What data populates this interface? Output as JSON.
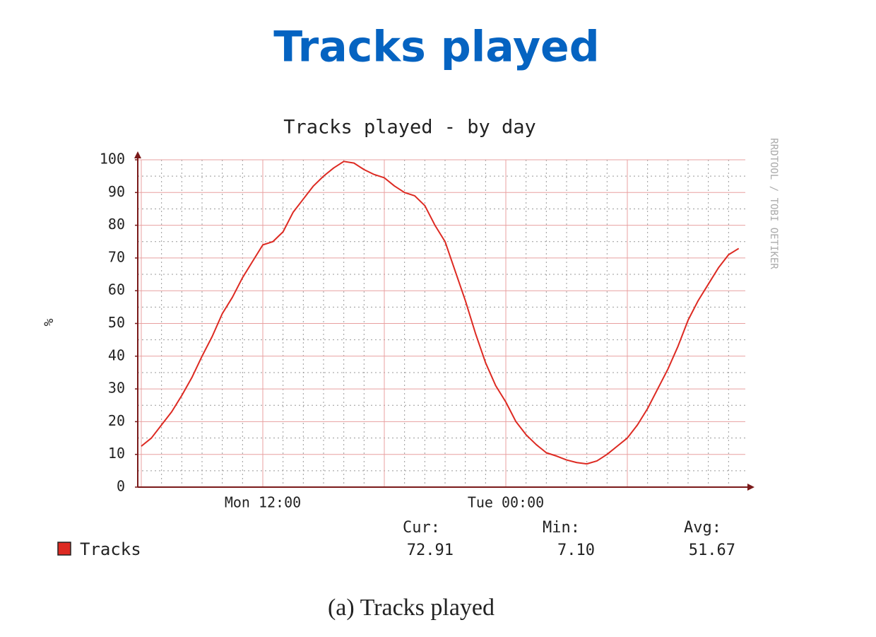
{
  "heading": "Tracks played",
  "caption": "(a) Tracks played",
  "chart_data": {
    "type": "line",
    "title": "Tracks played - by day",
    "y_label": "%",
    "watermark": "RRDTOOL / TOBI OETIKER",
    "categories": [
      null,
      null,
      null,
      null,
      null,
      null,
      null,
      null,
      null,
      null,
      null,
      null,
      "Mon 12:00",
      null,
      null,
      null,
      null,
      null,
      null,
      null,
      null,
      null,
      null,
      null,
      null,
      null,
      null,
      null,
      null,
      null,
      null,
      null,
      null,
      null,
      null,
      null,
      "Tue 00:00",
      null,
      null,
      null,
      null,
      null,
      null,
      null,
      null,
      null,
      null,
      null,
      null,
      null,
      null,
      null,
      null,
      null,
      null,
      null,
      null,
      null,
      null,
      null
    ],
    "series": [
      {
        "name": "Tracks",
        "color": "#dd2a22",
        "values": [
          12.5,
          15,
          19,
          23,
          28,
          33.5,
          40,
          46,
          53,
          58,
          64,
          69,
          74,
          75,
          78,
          84,
          88,
          92,
          95,
          97.5,
          99.5,
          99,
          97,
          95.5,
          94.5,
          92,
          90,
          89,
          86,
          80,
          75,
          66,
          57,
          47,
          38,
          31,
          26,
          20,
          16,
          13,
          10.5,
          9.5,
          8.3,
          7.5,
          7.1,
          8,
          10,
          12.5,
          15,
          19,
          24,
          30,
          36,
          43,
          51,
          57,
          62,
          67,
          71,
          72.91
        ]
      }
    ],
    "ylim": [
      0,
      100
    ],
    "yticks": [
      0,
      10,
      20,
      30,
      40,
      50,
      60,
      70,
      80,
      90,
      100
    ],
    "grid": true,
    "stats": {
      "labels": [
        "Cur:",
        "Min:",
        "Avg:"
      ],
      "values": [
        72.91,
        7.1,
        51.67
      ],
      "value_labels": [
        "72.91",
        "7.10",
        "51.67"
      ]
    }
  }
}
